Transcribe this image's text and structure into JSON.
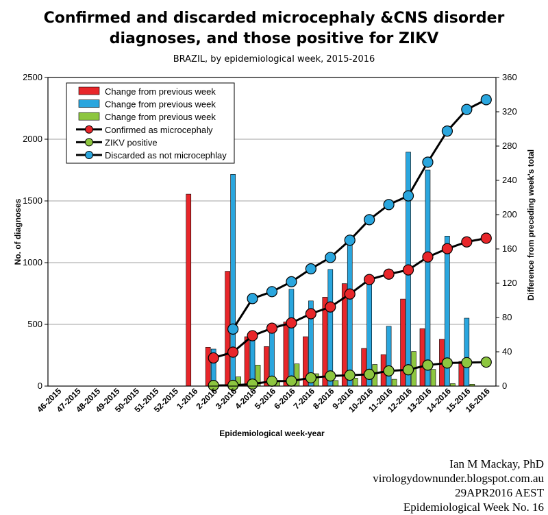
{
  "chart_data": {
    "type": "bar",
    "title_line1": "Confirmed and discarded microcephaly &CNS disorder",
    "title_line2": "diagnoses, and those positive for ZIKV",
    "subtitle": "BRAZIL, by epidemiological week, 2015-2016",
    "xlabel": "Epidemiological week-year",
    "ylabel": "No. of diagnoses",
    "y2label": "Difference from preceding week's total",
    "ylim": [
      0,
      2500
    ],
    "y2lim": [
      0,
      360
    ],
    "yticks": [
      "0",
      "500",
      "1000",
      "1500",
      "2000",
      "2500"
    ],
    "y2ticks": [
      "0",
      "40",
      "80",
      "120",
      "160",
      "200",
      "240",
      "280",
      "320",
      "360"
    ],
    "categories": [
      "46-2015",
      "47-2015",
      "48-2015",
      "49-2015",
      "50-2015",
      "51-2015",
      "52-2015",
      "1-2016",
      "2-2016",
      "3-2016",
      "4-2016",
      "5-2016",
      "6-2016",
      "7-2016",
      "8-2016",
      "9-2016",
      "10-2016",
      "11-2016",
      "12-2016",
      "13-2016",
      "14-2016",
      "15-2016",
      "16-2016"
    ],
    "bar_series": [
      {
        "name": "Change from previous week",
        "color": "#e8262a",
        "values": [
          null,
          null,
          null,
          null,
          null,
          null,
          null,
          1555,
          315,
          930,
          400,
          320,
          520,
          400,
          720,
          830,
          305,
          255,
          705,
          465,
          380,
          200,
          null
        ]
      },
      {
        "name": "Change from previous week",
        "color": "#2aa6de",
        "values": [
          null,
          null,
          null,
          null,
          null,
          null,
          null,
          null,
          300,
          1715,
          390,
          480,
          785,
          690,
          945,
          1160,
          845,
          485,
          1895,
          1750,
          1215,
          550,
          null
        ]
      },
      {
        "name": "Change from previous week",
        "color": "#8dc63f",
        "values": [
          null,
          null,
          null,
          null,
          null,
          null,
          null,
          null,
          0,
          75,
          170,
          40,
          180,
          100,
          45,
          65,
          175,
          55,
          280,
          135,
          20,
          15,
          null
        ]
      }
    ],
    "line_series": [
      {
        "name": "Confirmed as microcephaly",
        "color": "#e8262a",
        "axis": "left",
        "values": [
          null,
          null,
          null,
          null,
          null,
          null,
          null,
          null,
          228,
          275,
          408,
          469,
          512,
          586,
          641,
          746,
          863,
          907,
          941,
          1046,
          1113,
          1168,
          1198
        ]
      },
      {
        "name": "ZIKV positive",
        "color": "#8dc63f",
        "axis": "left",
        "values": [
          null,
          null,
          null,
          null,
          null,
          null,
          null,
          null,
          5,
          6,
          16,
          40,
          41,
          67,
          82,
          88,
          95,
          123,
          132,
          170,
          187,
          190,
          194
        ]
      },
      {
        "name": "Discarded as not microcephlay",
        "color": "#2aa6de",
        "axis": "left",
        "values": [
          null,
          null,
          null,
          null,
          null,
          null,
          null,
          null,
          null,
          462,
          709,
          765,
          845,
          950,
          1042,
          1182,
          1348,
          1470,
          1541,
          1814,
          2066,
          2241,
          2320
        ]
      }
    ],
    "legend_position": "top-left",
    "grid": true
  },
  "credit": {
    "line1": "Ian M Mackay, PhD",
    "line2": "virologydownunder.blogspot.com.au",
    "line3": "29APR2016 AEST",
    "line4": "Epidemiological Week No. 16"
  }
}
